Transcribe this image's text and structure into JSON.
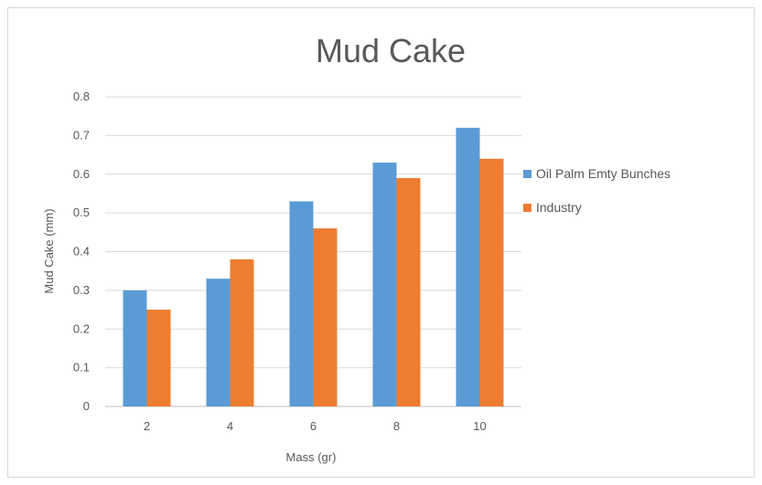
{
  "chart_data": {
    "type": "bar",
    "title": "Mud Cake",
    "xlabel": "Mass (gr)",
    "ylabel": "Mud Cake (mm)",
    "categories": [
      "2",
      "4",
      "6",
      "8",
      "10"
    ],
    "ylim": [
      0,
      0.8
    ],
    "yticks": [
      "0",
      "0.1",
      "0.2",
      "0.3",
      "0.4",
      "0.5",
      "0.6",
      "0.7",
      "0.8"
    ],
    "grid": true,
    "legend_position": "right",
    "series": [
      {
        "name": "Oil Palm Emty Bunches",
        "color": "#5b9bd5",
        "values": [
          0.3,
          0.33,
          0.53,
          0.63,
          0.72
        ]
      },
      {
        "name": "Industry",
        "color": "#ed7d31",
        "values": [
          0.25,
          0.38,
          0.46,
          0.59,
          0.64
        ]
      }
    ]
  }
}
